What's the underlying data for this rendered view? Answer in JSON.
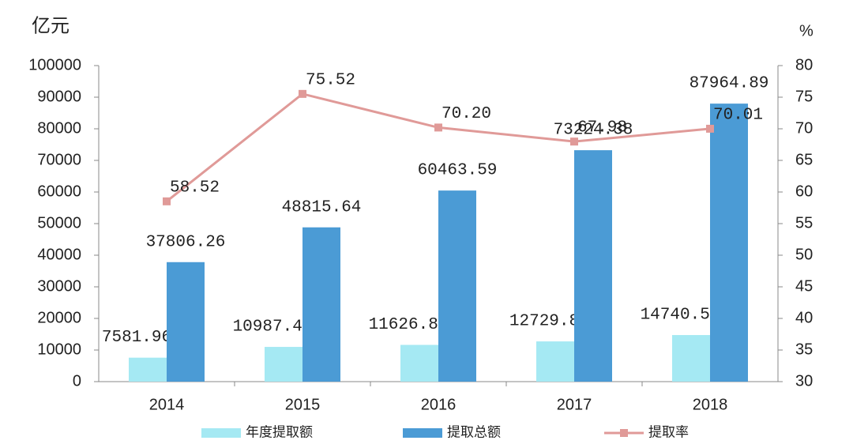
{
  "chart_data": {
    "type": "bar-line",
    "y_label": "亿元",
    "y2_label": "%",
    "categories": [
      "2014",
      "2015",
      "2016",
      "2017",
      "2018"
    ],
    "series": [
      {
        "name": "年度提取额",
        "color": "#a5e9f3",
        "type": "bar",
        "values": [
          7581.96,
          10987.47,
          11626.88,
          12729.8,
          14740.51
        ]
      },
      {
        "name": "提取总额",
        "color": "#4b9bd5",
        "type": "bar",
        "values": [
          37806.26,
          48815.64,
          60463.59,
          73224.38,
          87964.89
        ]
      },
      {
        "name": "提取率",
        "color": "#e09a98",
        "type": "line",
        "axis": "y2",
        "values": [
          58.52,
          75.52,
          70.2,
          67.98,
          70.01
        ],
        "value_labels": [
          "58.52",
          "75.52",
          "70.20",
          "67.98",
          "70.01"
        ]
      }
    ],
    "ylim": [
      0,
      100000
    ],
    "yticks": [
      0,
      10000,
      20000,
      30000,
      40000,
      50000,
      60000,
      70000,
      80000,
      90000,
      100000
    ],
    "y2lim": [
      30,
      80
    ],
    "y2ticks": [
      30,
      35,
      40,
      45,
      50,
      55,
      60,
      65,
      70,
      75,
      80
    ],
    "grid": false,
    "legend": "bottom"
  }
}
